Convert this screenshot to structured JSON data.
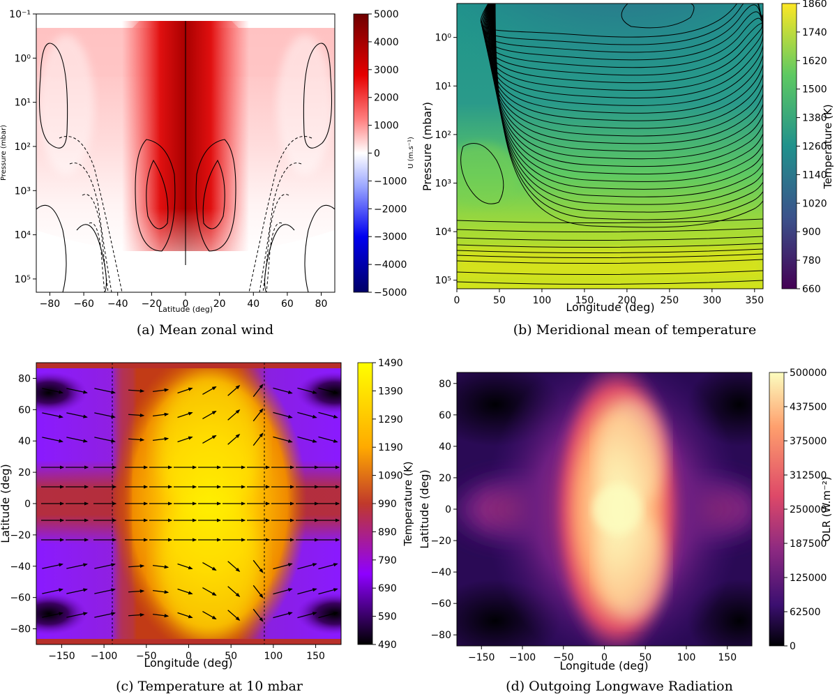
{
  "colors": {
    "rdbu": [
      "#08306b",
      "#2b5cff",
      "#9fb0ff",
      "#ffffff",
      "#ffb3b3",
      "#ff2a2a",
      "#7a0000"
    ],
    "viridis": [
      "#440154",
      "#3b528b",
      "#21918c",
      "#5ec962",
      "#fde725"
    ],
    "gnuplot": [
      "#000000",
      "#8a00ff",
      "#b7003a",
      "#ff7a00",
      "#ffff00"
    ],
    "magma": [
      "#000004",
      "#3b0f70",
      "#8c2981",
      "#de4968",
      "#fe9f6d",
      "#fcfdbf"
    ]
  },
  "chart_data": [
    {
      "id": "a",
      "type": "heatmap",
      "subtype": "filled-contour",
      "caption": "(a) Mean zonal wind",
      "xlabel": "Latitude (deg)",
      "ylabel": "Pressure (mbar)",
      "xlim": [
        -88,
        88
      ],
      "ylim": [
        0.1,
        200000
      ],
      "xticks": [
        -80,
        -60,
        -40,
        -20,
        0,
        20,
        40,
        60,
        80
      ],
      "xtick_labels": [
        "−80",
        "−60",
        "−40",
        "−20",
        "0",
        "20",
        "40",
        "60",
        "80"
      ],
      "yticks": [
        0.1,
        1,
        10,
        100,
        1000,
        10000,
        100000
      ],
      "ytick_labels": [
        "10⁻¹",
        "10⁰",
        "10¹",
        "10²",
        "10³",
        "10⁴",
        "10⁵"
      ],
      "colorbar": {
        "label": "U (m.s⁻¹)",
        "range": [
          -5000,
          5000
        ],
        "ticks": [
          5000,
          4000,
          3000,
          2000,
          1000,
          0,
          -1000,
          -2000,
          -3000,
          -4000,
          -5000
        ],
        "tick_labels": [
          "5000",
          "4000",
          "3000",
          "2000",
          "1000",
          "0",
          "−1000",
          "−2000",
          "−3000",
          "−4000",
          "−5000"
        ]
      }
    },
    {
      "id": "b",
      "type": "heatmap",
      "subtype": "filled-contour",
      "caption": "(b) Meridional mean of temperature",
      "xlabel": "Longitude (deg)",
      "ylabel": "Pressure (mbar)",
      "xlim": [
        0,
        360
      ],
      "ylim": [
        0.2,
        150000
      ],
      "xticks": [
        0,
        50,
        100,
        150,
        200,
        250,
        300,
        350
      ],
      "xtick_labels": [
        "0",
        "50",
        "100",
        "150",
        "200",
        "250",
        "300",
        "350"
      ],
      "yticks": [
        1,
        10,
        100,
        1000,
        10000,
        100000
      ],
      "ytick_labels": [
        "10⁰",
        "10¹",
        "10²",
        "10³",
        "10⁴",
        "10⁵"
      ],
      "colorbar": {
        "label": "Temperature (K)",
        "range": [
          660,
          1860
        ],
        "ticks": [
          1860,
          1740,
          1620,
          1500,
          1380,
          1260,
          1140,
          1020,
          900,
          780,
          660
        ],
        "tick_labels": [
          "1860",
          "1740",
          "1620",
          "1500",
          "1380",
          "1260",
          "1140",
          "1020",
          "900",
          "780",
          "660"
        ]
      }
    },
    {
      "id": "c",
      "type": "heatmap",
      "subtype": "filled-contour-with-wind-vectors",
      "caption": "(c) Temperature at 10 mbar",
      "xlabel": "Longitude (deg)",
      "ylabel": "Latitude (deg)",
      "xlim": [
        -180,
        180
      ],
      "ylim": [
        -90,
        90
      ],
      "xticks": [
        -150,
        -100,
        -50,
        0,
        50,
        100,
        150
      ],
      "xtick_labels": [
        "−150",
        "−100",
        "−50",
        "0",
        "50",
        "100",
        "150"
      ],
      "yticks": [
        80,
        60,
        40,
        20,
        0,
        -20,
        -40,
        -60,
        -80
      ],
      "ytick_labels": [
        "80",
        "60",
        "40",
        "20",
        "0",
        "−20",
        "−40",
        "−60",
        "−80"
      ],
      "colorbar": {
        "label": "Temperature (K)",
        "range": [
          490,
          1490
        ],
        "ticks": [
          1490,
          1390,
          1290,
          1190,
          1090,
          990,
          890,
          790,
          690,
          590,
          490
        ],
        "tick_labels": [
          "1490",
          "1390",
          "1290",
          "1190",
          "1090",
          "990",
          "890",
          "790",
          "690",
          "590",
          "490"
        ]
      }
    },
    {
      "id": "d",
      "type": "heatmap",
      "caption": "(d) Outgoing Longwave Radiation",
      "xlabel": "Longitude (deg)",
      "ylabel": "Latitude (deg)",
      "xlim": [
        -180,
        180
      ],
      "ylim": [
        -87,
        87
      ],
      "xticks": [
        -150,
        -100,
        -50,
        0,
        50,
        100,
        150
      ],
      "xtick_labels": [
        "−150",
        "−100",
        "−50",
        "0",
        "50",
        "100",
        "150"
      ],
      "yticks": [
        80,
        60,
        40,
        20,
        0,
        -20,
        -40,
        -60,
        -80
      ],
      "ytick_labels": [
        "80",
        "60",
        "40",
        "20",
        "0",
        "−20",
        "−40",
        "−60",
        "−80"
      ],
      "colorbar": {
        "label": "OLR (W.m⁻²)",
        "range": [
          0,
          500000
        ],
        "ticks": [
          500000,
          437500,
          375000,
          312500,
          250000,
          187500,
          125000,
          62500,
          0
        ],
        "tick_labels": [
          "500000",
          "437500",
          "375000",
          "312500",
          "250000",
          "187500",
          "125000",
          "62500",
          "0"
        ]
      }
    }
  ]
}
